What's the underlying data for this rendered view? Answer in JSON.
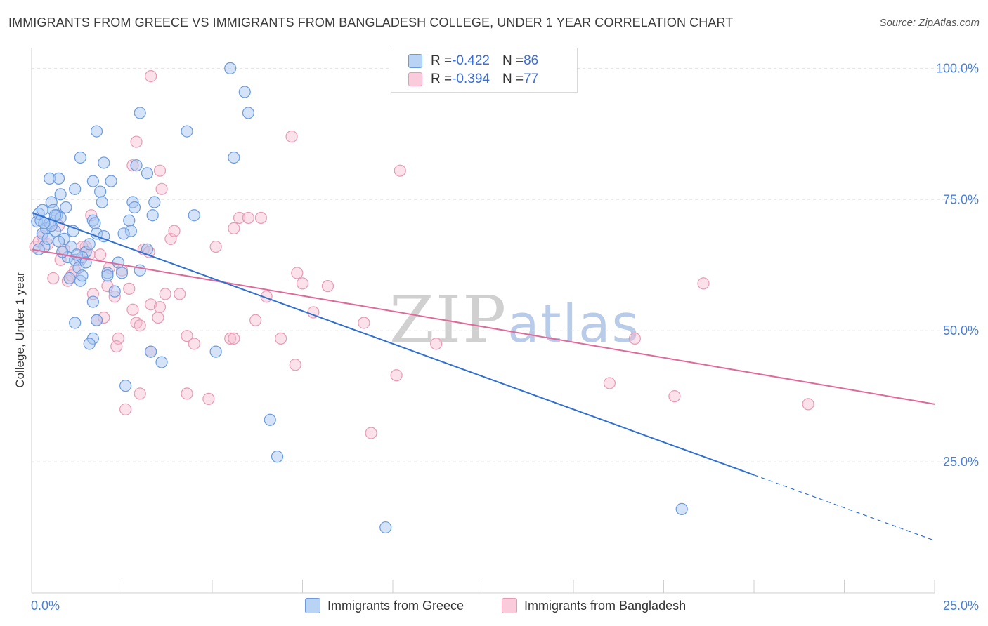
{
  "title": "IMMIGRANTS FROM GREECE VS IMMIGRANTS FROM BANGLADESH COLLEGE, UNDER 1 YEAR CORRELATION CHART",
  "source": "Source: ZipAtlas.com",
  "watermark": {
    "zip": "ZIP",
    "atlas": "atlas"
  },
  "legend": {
    "rows": [
      {
        "r_label": "R = ",
        "r_value": "-0.422",
        "n_label": "N = ",
        "n_value": "86"
      },
      {
        "r_label": "R = ",
        "r_value": "-0.394",
        "n_label": "N = ",
        "n_value": "77"
      }
    ]
  },
  "colors": {
    "greece_fill": "#a9c8f2",
    "greece_stroke": "#6a9be0",
    "greece_line": "#2f6fd0",
    "bangladesh_fill": "#f6bcd0",
    "bangladesh_stroke": "#e89ab5",
    "bangladesh_line": "#e0699a",
    "grid": "#e3e3e3",
    "axis_text": "#4a7fd4"
  },
  "chart_data": {
    "type": "scatter",
    "title": "IMMIGRANTS FROM GREECE VS IMMIGRANTS FROM BANGLADESH COLLEGE, UNDER 1 YEAR CORRELATION CHART",
    "xlabel": "",
    "ylabel": "College, Under 1 year",
    "xlim": [
      0,
      25
    ],
    "ylim": [
      0,
      105
    ],
    "x_tick_labels": [
      "0.0%",
      "25.0%"
    ],
    "y_ticks": [
      25,
      50,
      75,
      100
    ],
    "y_tick_labels": [
      "25.0%",
      "50.0%",
      "75.0%",
      "100.0%"
    ],
    "grid": true,
    "legend_position": "top-center",
    "series": [
      {
        "name": "Immigrants from Greece",
        "R": -0.422,
        "N": 86,
        "trend": {
          "x0": 0,
          "y0": 72.5,
          "x1": 20,
          "y1": 22.5,
          "dashed_to": [
            25,
            10
          ]
        },
        "points": [
          [
            0.15,
            70.8
          ],
          [
            0.2,
            72.3
          ],
          [
            0.25,
            71.0
          ],
          [
            0.3,
            68.5
          ],
          [
            0.35,
            66.0
          ],
          [
            0.4,
            69.5
          ],
          [
            0.5,
            70.5
          ],
          [
            0.55,
            74.5
          ],
          [
            0.6,
            73.0
          ],
          [
            0.65,
            69.0
          ],
          [
            0.7,
            72.0
          ],
          [
            0.8,
            71.5
          ],
          [
            0.9,
            67.5
          ],
          [
            1.0,
            64.0
          ],
          [
            1.1,
            66.0
          ],
          [
            1.2,
            63.5
          ],
          [
            1.3,
            62.0
          ],
          [
            1.35,
            59.5
          ],
          [
            1.4,
            60.5
          ],
          [
            1.5,
            65.0
          ],
          [
            1.6,
            66.5
          ],
          [
            1.7,
            71.0
          ],
          [
            1.8,
            68.5
          ],
          [
            2.0,
            68.0
          ],
          [
            2.1,
            61.0
          ],
          [
            2.3,
            57.5
          ],
          [
            2.4,
            63.0
          ],
          [
            2.5,
            61.0
          ],
          [
            2.7,
            71.0
          ],
          [
            2.75,
            69.0
          ],
          [
            2.8,
            74.5
          ],
          [
            2.85,
            73.5
          ],
          [
            3.0,
            61.5
          ],
          [
            3.2,
            65.5
          ],
          [
            3.3,
            46.0
          ],
          [
            0.5,
            79.0
          ],
          [
            0.75,
            79.0
          ],
          [
            0.8,
            76.0
          ],
          [
            1.2,
            77.0
          ],
          [
            1.35,
            83.0
          ],
          [
            1.7,
            78.5
          ],
          [
            1.9,
            76.5
          ],
          [
            1.95,
            74.5
          ],
          [
            2.0,
            82.0
          ],
          [
            2.2,
            78.5
          ],
          [
            2.9,
            81.5
          ],
          [
            3.2,
            80.0
          ],
          [
            3.4,
            74.5
          ],
          [
            3.35,
            72.0
          ],
          [
            4.5,
            72.0
          ],
          [
            1.8,
            88.0
          ],
          [
            3.0,
            91.5
          ],
          [
            4.3,
            88.0
          ],
          [
            5.5,
            100.0
          ],
          [
            5.9,
            95.5
          ],
          [
            6.0,
            91.5
          ],
          [
            5.6,
            83.0
          ],
          [
            1.2,
            51.5
          ],
          [
            1.7,
            48.5
          ],
          [
            1.7,
            55.5
          ],
          [
            1.8,
            52.0
          ],
          [
            3.6,
            44.0
          ],
          [
            2.6,
            39.5
          ],
          [
            5.1,
            46.0
          ],
          [
            6.6,
            33.0
          ],
          [
            6.8,
            26.0
          ],
          [
            9.8,
            12.5
          ],
          [
            18.0,
            16.0
          ],
          [
            1.15,
            69.0
          ],
          [
            0.95,
            73.5
          ],
          [
            1.6,
            47.5
          ],
          [
            0.3,
            73.0
          ],
          [
            0.45,
            67.5
          ],
          [
            1.4,
            64.0
          ],
          [
            0.85,
            65.0
          ],
          [
            0.2,
            65.5
          ],
          [
            1.05,
            60.0
          ],
          [
            2.55,
            68.5
          ],
          [
            0.55,
            70.0
          ],
          [
            1.75,
            70.5
          ],
          [
            0.65,
            72.0
          ],
          [
            1.25,
            64.5
          ],
          [
            0.35,
            70.5
          ],
          [
            0.75,
            67.0
          ],
          [
            1.5,
            63.0
          ],
          [
            2.1,
            60.5
          ]
        ]
      },
      {
        "name": "Immigrants from Bangladesh",
        "R": -0.394,
        "N": 77,
        "trend": {
          "x0": 0,
          "y0": 65.5,
          "x1": 25,
          "y1": 36.0
        },
        "points": [
          [
            0.1,
            66.0
          ],
          [
            0.2,
            67.0
          ],
          [
            0.3,
            68.0
          ],
          [
            0.45,
            66.5
          ],
          [
            0.6,
            60.0
          ],
          [
            0.8,
            63.5
          ],
          [
            0.9,
            65.5
          ],
          [
            1.0,
            59.5
          ],
          [
            1.1,
            60.5
          ],
          [
            1.2,
            61.5
          ],
          [
            1.35,
            63.5
          ],
          [
            1.5,
            66.0
          ],
          [
            1.6,
            64.5
          ],
          [
            1.7,
            57.0
          ],
          [
            1.8,
            52.0
          ],
          [
            2.0,
            52.5
          ],
          [
            2.1,
            58.5
          ],
          [
            2.15,
            62.0
          ],
          [
            2.3,
            56.5
          ],
          [
            2.4,
            48.5
          ],
          [
            2.5,
            61.5
          ],
          [
            2.7,
            58.0
          ],
          [
            2.8,
            54.0
          ],
          [
            2.9,
            51.5
          ],
          [
            3.0,
            51.0
          ],
          [
            3.3,
            55.0
          ],
          [
            3.5,
            52.5
          ],
          [
            3.55,
            54.5
          ],
          [
            3.1,
            65.5
          ],
          [
            3.25,
            65.0
          ],
          [
            3.7,
            57.0
          ],
          [
            4.1,
            57.0
          ],
          [
            2.35,
            47.0
          ],
          [
            2.6,
            35.0
          ],
          [
            3.0,
            38.0
          ],
          [
            3.3,
            46.0
          ],
          [
            4.3,
            38.0
          ],
          [
            4.3,
            49.0
          ],
          [
            4.5,
            47.5
          ],
          [
            4.9,
            37.0
          ],
          [
            5.5,
            48.5
          ],
          [
            5.6,
            48.5
          ],
          [
            6.2,
            52.0
          ],
          [
            6.5,
            56.5
          ],
          [
            6.9,
            48.5
          ],
          [
            7.3,
            43.5
          ],
          [
            7.35,
            61.0
          ],
          [
            7.5,
            59.0
          ],
          [
            7.8,
            53.5
          ],
          [
            8.2,
            58.5
          ],
          [
            9.2,
            51.5
          ],
          [
            9.4,
            30.5
          ],
          [
            10.1,
            41.5
          ],
          [
            11.2,
            47.5
          ],
          [
            16.0,
            40.0
          ],
          [
            16.7,
            48.5
          ],
          [
            17.8,
            37.5
          ],
          [
            18.6,
            59.0
          ],
          [
            21.5,
            36.0
          ],
          [
            1.65,
            72.0
          ],
          [
            2.8,
            81.5
          ],
          [
            2.9,
            86.0
          ],
          [
            3.55,
            80.5
          ],
          [
            3.6,
            77.0
          ],
          [
            3.85,
            67.5
          ],
          [
            3.95,
            69.0
          ],
          [
            5.1,
            66.0
          ],
          [
            5.6,
            69.5
          ],
          [
            5.75,
            71.5
          ],
          [
            6.0,
            71.5
          ],
          [
            6.35,
            71.5
          ],
          [
            7.2,
            87.0
          ],
          [
            10.2,
            80.5
          ],
          [
            3.3,
            98.5
          ],
          [
            0.75,
            70.0
          ],
          [
            1.4,
            66.0
          ],
          [
            1.9,
            64.5
          ]
        ]
      }
    ]
  },
  "bottom_legend": {
    "greece": "Immigrants from Greece",
    "bangladesh": "Immigrants from Bangladesh"
  }
}
